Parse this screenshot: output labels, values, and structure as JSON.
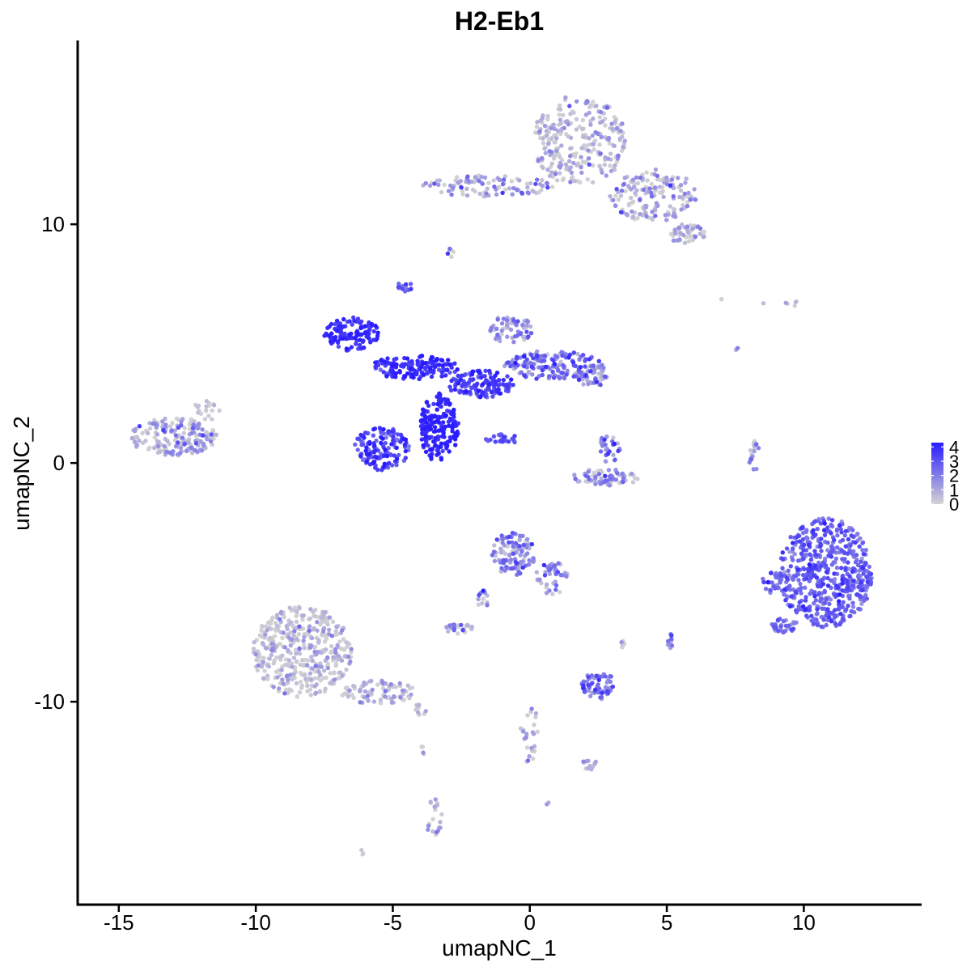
{
  "chart_data": {
    "type": "scatter",
    "title": "H2-Eb1",
    "xlabel": "umapNC_1",
    "ylabel": "umapNC_2",
    "xlim": [
      -16.5,
      14.3
    ],
    "ylim": [
      -18.5,
      17.7
    ],
    "xticks": [
      -15,
      -10,
      -5,
      0,
      5,
      10
    ],
    "xtick_labels": [
      "-15",
      "-10",
      "-5",
      "0",
      "5",
      "10"
    ],
    "yticks": [
      -10,
      0,
      10
    ],
    "ytick_labels": [
      "-10",
      "0",
      "10"
    ],
    "grid": false,
    "legend": {
      "type": "colorbar",
      "placement": "right",
      "min": 0,
      "max": 4.3,
      "ticks": [
        0,
        1,
        2,
        3,
        4
      ],
      "tick_labels": [
        "0",
        "1",
        "2",
        "3",
        "4"
      ],
      "low_color": "#d3d3d3",
      "high_color": "#2a1cff"
    },
    "clusters": [
      {
        "cx": 1.8,
        "cy": 13.5,
        "rx": 1.7,
        "ry": 1.9,
        "n": 260,
        "expr": 0.4,
        "spread": 0.9
      },
      {
        "cx": 4.5,
        "cy": 11.2,
        "rx": 1.6,
        "ry": 1.1,
        "n": 160,
        "expr": 0.7,
        "spread": 1.0
      },
      {
        "cx": 5.7,
        "cy": 9.6,
        "rx": 0.7,
        "ry": 0.4,
        "n": 50,
        "expr": 0.4,
        "spread": 0.8
      },
      {
        "cx": -1.5,
        "cy": 11.6,
        "rx": 2.4,
        "ry": 0.45,
        "n": 100,
        "expr": 0.9,
        "spread": 1.2
      },
      {
        "cx": -2.9,
        "cy": 8.8,
        "rx": 0.15,
        "ry": 0.25,
        "n": 6,
        "expr": 1.0,
        "spread": 1.0
      },
      {
        "cx": -4.6,
        "cy": 7.4,
        "rx": 0.3,
        "ry": 0.25,
        "n": 15,
        "expr": 2.5,
        "spread": 0.8
      },
      {
        "cx": -6.5,
        "cy": 5.4,
        "rx": 1.0,
        "ry": 0.7,
        "n": 110,
        "expr": 3.9,
        "spread": 0.4
      },
      {
        "cx": -4.2,
        "cy": 4.0,
        "rx": 1.6,
        "ry": 0.5,
        "n": 140,
        "expr": 3.7,
        "spread": 0.5
      },
      {
        "cx": -3.3,
        "cy": 1.5,
        "rx": 0.7,
        "ry": 1.5,
        "n": 180,
        "expr": 4.0,
        "spread": 0.4
      },
      {
        "cx": -5.4,
        "cy": 0.6,
        "rx": 1.0,
        "ry": 0.9,
        "n": 140,
        "expr": 3.3,
        "spread": 0.8
      },
      {
        "cx": -1.8,
        "cy": 3.3,
        "rx": 1.2,
        "ry": 0.6,
        "n": 130,
        "expr": 3.4,
        "spread": 0.6
      },
      {
        "cx": 0.8,
        "cy": 4.1,
        "rx": 1.8,
        "ry": 0.6,
        "n": 150,
        "expr": 2.1,
        "spread": 1.0
      },
      {
        "cx": -0.7,
        "cy": 5.6,
        "rx": 0.8,
        "ry": 0.6,
        "n": 60,
        "expr": 1.2,
        "spread": 1.0
      },
      {
        "cx": 2.3,
        "cy": 3.7,
        "rx": 0.6,
        "ry": 0.5,
        "n": 50,
        "expr": 1.3,
        "spread": 1.0
      },
      {
        "cx": -13.0,
        "cy": 1.1,
        "rx": 1.6,
        "ry": 0.8,
        "n": 190,
        "expr": 0.7,
        "spread": 1.2
      },
      {
        "cx": -11.8,
        "cy": 2.2,
        "rx": 0.5,
        "ry": 0.4,
        "n": 20,
        "expr": 0.4,
        "spread": 0.8
      },
      {
        "cx": 2.8,
        "cy": -0.6,
        "rx": 1.3,
        "ry": 0.35,
        "n": 70,
        "expr": 1.1,
        "spread": 1.0
      },
      {
        "cx": 2.9,
        "cy": 0.6,
        "rx": 0.4,
        "ry": 0.6,
        "n": 30,
        "expr": 1.8,
        "spread": 1.0
      },
      {
        "cx": -1.0,
        "cy": 1.0,
        "rx": 0.6,
        "ry": 0.2,
        "n": 25,
        "expr": 2.9,
        "spread": 0.5
      },
      {
        "cx": 8.2,
        "cy": 0.3,
        "rx": 0.2,
        "ry": 0.7,
        "n": 18,
        "expr": 1.2,
        "spread": 1.0
      },
      {
        "cx": 10.8,
        "cy": -4.6,
        "rx": 1.7,
        "ry": 2.3,
        "n": 560,
        "expr": 2.6,
        "spread": 0.6
      },
      {
        "cx": 8.8,
        "cy": -5.0,
        "rx": 0.4,
        "ry": 0.5,
        "n": 30,
        "expr": 2.0,
        "spread": 0.8
      },
      {
        "cx": 9.3,
        "cy": -6.8,
        "rx": 0.5,
        "ry": 0.3,
        "n": 30,
        "expr": 1.8,
        "spread": 0.8
      },
      {
        "cx": -0.6,
        "cy": -3.8,
        "rx": 0.8,
        "ry": 0.9,
        "n": 110,
        "expr": 1.6,
        "spread": 1.0
      },
      {
        "cx": 0.8,
        "cy": -4.8,
        "rx": 0.6,
        "ry": 0.7,
        "n": 40,
        "expr": 1.2,
        "spread": 1.0
      },
      {
        "cx": -1.7,
        "cy": -5.8,
        "rx": 0.2,
        "ry": 0.6,
        "n": 12,
        "expr": 1.0,
        "spread": 1.0
      },
      {
        "cx": -2.6,
        "cy": -6.9,
        "rx": 0.5,
        "ry": 0.25,
        "n": 25,
        "expr": 0.9,
        "spread": 1.0
      },
      {
        "cx": 2.5,
        "cy": -9.3,
        "rx": 0.6,
        "ry": 0.6,
        "n": 70,
        "expr": 2.3,
        "spread": 0.8
      },
      {
        "cx": 5.1,
        "cy": -7.5,
        "rx": 0.15,
        "ry": 0.4,
        "n": 10,
        "expr": 1.5,
        "spread": 1.0
      },
      {
        "cx": 3.4,
        "cy": -7.6,
        "rx": 0.1,
        "ry": 0.15,
        "n": 5,
        "expr": 0.4,
        "spread": 1.0
      },
      {
        "cx": -8.3,
        "cy": -7.9,
        "rx": 1.8,
        "ry": 1.9,
        "n": 420,
        "expr": 0.2,
        "spread": 0.8
      },
      {
        "cx": -5.5,
        "cy": -9.6,
        "rx": 1.4,
        "ry": 0.5,
        "n": 80,
        "expr": 0.3,
        "spread": 0.9
      },
      {
        "cx": -4.0,
        "cy": -10.3,
        "rx": 0.3,
        "ry": 0.25,
        "n": 10,
        "expr": 0.2,
        "spread": 1.0
      },
      {
        "cx": 0.0,
        "cy": -11.4,
        "rx": 0.35,
        "ry": 1.2,
        "n": 30,
        "expr": 0.3,
        "spread": 1.0
      },
      {
        "cx": 2.2,
        "cy": -12.6,
        "rx": 0.3,
        "ry": 0.25,
        "n": 12,
        "expr": 0.3,
        "spread": 1.0
      },
      {
        "cx": -3.5,
        "cy": -14.9,
        "rx": 0.3,
        "ry": 0.9,
        "n": 20,
        "expr": 0.3,
        "spread": 1.0
      },
      {
        "cx": -6.1,
        "cy": -16.3,
        "rx": 0.1,
        "ry": 0.1,
        "n": 3,
        "expr": 0.3,
        "spread": 1.0
      },
      {
        "cx": 0.6,
        "cy": -14.2,
        "rx": 0.1,
        "ry": 0.1,
        "n": 2,
        "expr": 0.3,
        "spread": 1.0
      },
      {
        "cx": -3.9,
        "cy": -12.0,
        "rx": 0.1,
        "ry": 0.2,
        "n": 4,
        "expr": 0.3,
        "spread": 1.0
      },
      {
        "cx": 7.6,
        "cy": 4.8,
        "rx": 0.1,
        "ry": 0.15,
        "n": 3,
        "expr": 0.4,
        "spread": 1.0
      },
      {
        "cx": 9.6,
        "cy": 6.7,
        "rx": 0.3,
        "ry": 0.15,
        "n": 5,
        "expr": 0.4,
        "spread": 1.0
      },
      {
        "cx": 7.0,
        "cy": 6.9,
        "rx": 0.05,
        "ry": 0.05,
        "n": 1,
        "expr": 0.3,
        "spread": 1.0
      },
      {
        "cx": 8.5,
        "cy": 6.7,
        "rx": 0.05,
        "ry": 0.05,
        "n": 1,
        "expr": 0.3,
        "spread": 1.0
      }
    ]
  }
}
